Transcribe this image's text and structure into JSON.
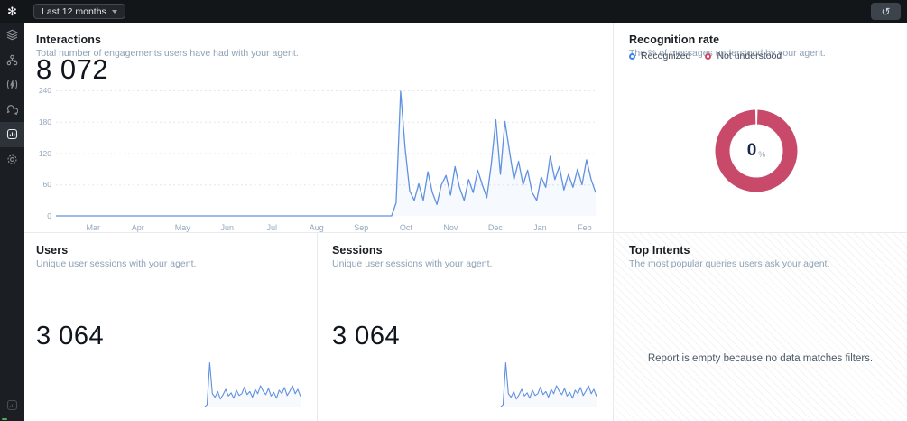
{
  "topbar": {
    "logo_icon": "flower-logo",
    "date_filter_label": "Last 12 months",
    "reset_icon": "counterclockwise-rotate",
    "reset_glyph": "↺",
    "logo_glyph": "✻"
  },
  "sidebar": {
    "icons": [
      "layers",
      "workflow",
      "functions",
      "transcripts",
      "analytics",
      "settings"
    ],
    "active_icon": "analytics",
    "bottom_icon": "widget"
  },
  "colors": {
    "accent_blue": "#6091e0",
    "donut_red": "#c9496a",
    "legend_blue": "#3d82f0",
    "topbar_bg": "#131619",
    "sidebar_bg": "#1b1e22",
    "divider": "#e8eaed"
  },
  "panels": {
    "interactions": {
      "title": "Interactions",
      "subtitle": "Total number of engagements users have had with your agent.",
      "value": "8 072"
    },
    "recognition": {
      "title": "Recognition rate",
      "subtitle": "The % of messages understood by your agent.",
      "legend": [
        {
          "label": "Recognized",
          "color": "#3d82f0"
        },
        {
          "label": "Not understood",
          "color": "#c9496a"
        }
      ],
      "center_value": "0",
      "center_unit": "%"
    },
    "users": {
      "title": "Users",
      "subtitle": "Unique user sessions with your agent.",
      "value": "3 064"
    },
    "sessions": {
      "title": "Sessions",
      "subtitle": "Unique user sessions with your agent.",
      "value": "3 064"
    },
    "top_intents": {
      "title": "Top Intents",
      "subtitle": "The most popular queries users ask your agent.",
      "empty_message": "Report is empty because no data matches filters."
    }
  },
  "chart_data": [
    {
      "id": "interactions_timeline",
      "type": "line",
      "title": "Interactions",
      "xlabel": "",
      "ylabel": "",
      "x_ticks": [
        "Mar",
        "Apr",
        "May",
        "Jun",
        "Jul",
        "Aug",
        "Sep",
        "Oct",
        "Nov",
        "Dec",
        "Jan",
        "Feb"
      ],
      "y_ticks": [
        0,
        60,
        120,
        180,
        240
      ],
      "ylim": [
        0,
        240
      ],
      "grid": true,
      "legend_position": "none",
      "line_color": "#6091e0",
      "values": [
        0,
        0,
        0,
        0,
        0,
        0,
        0,
        0,
        0,
        0,
        0,
        0,
        0,
        0,
        0,
        0,
        0,
        0,
        0,
        0,
        0,
        0,
        0,
        0,
        0,
        0,
        0,
        0,
        0,
        0,
        0,
        0,
        0,
        0,
        0,
        0,
        0,
        0,
        0,
        0,
        0,
        0,
        0,
        0,
        0,
        0,
        0,
        0,
        0,
        0,
        0,
        0,
        0,
        0,
        0,
        0,
        0,
        0,
        0,
        0,
        0,
        0,
        0,
        0,
        0,
        0,
        0,
        0,
        0,
        0,
        0,
        0,
        0,
        0,
        0,
        25,
        240,
        130,
        48,
        30,
        62,
        30,
        85,
        45,
        22,
        60,
        78,
        40,
        95,
        55,
        30,
        70,
        45,
        88,
        60,
        35,
        100,
        185,
        80,
        182,
        125,
        70,
        105,
        60,
        88,
        45,
        30,
        75,
        55,
        115,
        70,
        95,
        50,
        80,
        55,
        90,
        60,
        108,
        70,
        45
      ]
    },
    {
      "id": "recognition_donut",
      "type": "pie",
      "title": "Recognition rate",
      "slices": [
        {
          "label": "Recognized",
          "value": 0,
          "color": "#3d82f0"
        },
        {
          "label": "Not understood",
          "value": 100,
          "color": "#c9496a"
        }
      ],
      "center_label": "0 %"
    },
    {
      "id": "users_sparkline",
      "type": "line",
      "title": "Users",
      "ylim": [
        0,
        100
      ],
      "line_color": "#6091e0",
      "values": [
        0,
        0,
        0,
        0,
        0,
        0,
        0,
        0,
        0,
        0,
        0,
        0,
        0,
        0,
        0,
        0,
        0,
        0,
        0,
        0,
        0,
        0,
        0,
        0,
        0,
        0,
        0,
        0,
        0,
        0,
        0,
        0,
        0,
        0,
        0,
        0,
        0,
        0,
        0,
        0,
        0,
        0,
        0,
        0,
        0,
        0,
        0,
        0,
        0,
        0,
        0,
        0,
        0,
        0,
        0,
        0,
        0,
        0,
        0,
        0,
        0,
        0,
        0,
        0,
        5,
        100,
        30,
        22,
        35,
        18,
        28,
        40,
        25,
        32,
        20,
        38,
        26,
        30,
        45,
        28,
        35,
        22,
        40,
        30,
        48,
        36,
        28,
        42,
        25,
        33,
        20,
        38,
        30,
        44,
        26,
        36,
        48,
        30,
        40,
        24
      ]
    },
    {
      "id": "sessions_sparkline",
      "type": "line",
      "title": "Sessions",
      "ylim": [
        0,
        100
      ],
      "line_color": "#6091e0",
      "values": [
        0,
        0,
        0,
        0,
        0,
        0,
        0,
        0,
        0,
        0,
        0,
        0,
        0,
        0,
        0,
        0,
        0,
        0,
        0,
        0,
        0,
        0,
        0,
        0,
        0,
        0,
        0,
        0,
        0,
        0,
        0,
        0,
        0,
        0,
        0,
        0,
        0,
        0,
        0,
        0,
        0,
        0,
        0,
        0,
        0,
        0,
        0,
        0,
        0,
        0,
        0,
        0,
        0,
        0,
        0,
        0,
        0,
        0,
        0,
        0,
        0,
        0,
        0,
        0,
        5,
        100,
        30,
        22,
        35,
        18,
        28,
        40,
        25,
        32,
        20,
        38,
        26,
        30,
        45,
        28,
        35,
        22,
        40,
        30,
        48,
        36,
        28,
        42,
        25,
        33,
        20,
        38,
        30,
        44,
        26,
        36,
        48,
        30,
        40,
        24
      ]
    }
  ]
}
